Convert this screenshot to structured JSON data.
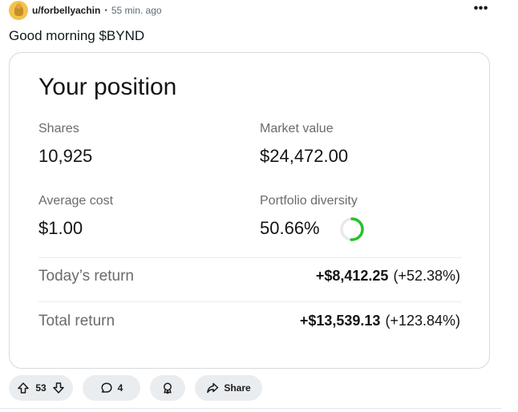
{
  "post": {
    "author": "u/forbellyachin",
    "separator": "•",
    "time": "55 min. ago",
    "more_label": "•••",
    "title": "Good morning $BYND"
  },
  "card": {
    "title": "Your position",
    "shares_label": "Shares",
    "shares_value": "10,925",
    "market_value_label": "Market value",
    "market_value": "$24,472.00",
    "avg_cost_label": "Average cost",
    "avg_cost_value": "$1.00",
    "diversity_label": "Portfolio diversity",
    "diversity_value": "50.66%",
    "diversity_fraction": 0.5066,
    "todays_return_label": "Today’s return",
    "todays_return_amount": "+$8,412.25",
    "todays_return_pct": "(+52.38%)",
    "total_return_label": "Total return",
    "total_return_amount": "+$13,539.13",
    "total_return_pct": "(+123.84%)",
    "ring_color": "#27c127",
    "ring_track_color": "#e9e9e9"
  },
  "actions": {
    "upvotes": "53",
    "comments": "4",
    "share_label": "Share",
    "icons": [
      "upvote-icon",
      "downvote-icon",
      "comment-icon",
      "award-icon",
      "share-icon"
    ]
  }
}
